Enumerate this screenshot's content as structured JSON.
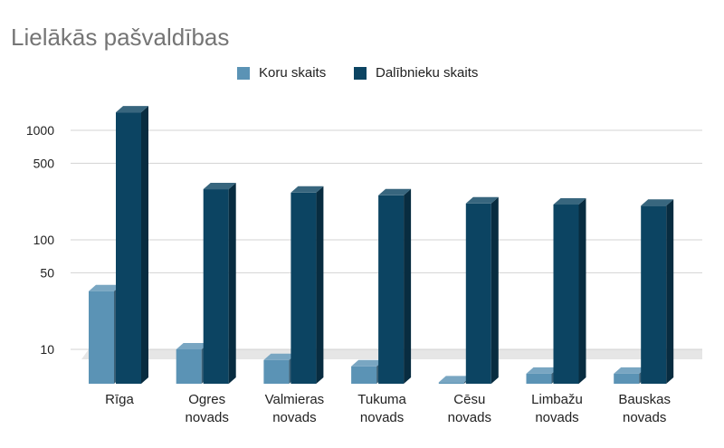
{
  "chart_data": {
    "type": "bar",
    "title": "Lielākās pašvaldības",
    "categories": [
      [
        "Rīga"
      ],
      [
        "Ogres",
        "novads"
      ],
      [
        "Valmieras",
        "novads"
      ],
      [
        "Tukuma",
        "novads"
      ],
      [
        "Cēsu",
        "novads"
      ],
      [
        "Limbažu",
        "novads"
      ],
      [
        "Bauskas",
        "novads"
      ]
    ],
    "series": [
      {
        "name": "Koru skaits",
        "color": "#5b93b5",
        "values": [
          34,
          10,
          8,
          7,
          5,
          6,
          6
        ]
      },
      {
        "name": "Dalībnieku skaits",
        "color": "#0c4462",
        "values": [
          1460,
          290,
          270,
          255,
          215,
          210,
          205
        ]
      }
    ],
    "y_scale": "log",
    "ylim": [
      5,
      2000
    ],
    "y_ticks": [
      10,
      50,
      100,
      500,
      1000
    ],
    "y_tick_labels": [
      "10",
      "50",
      "100",
      "500",
      "1000"
    ],
    "xlabel": "",
    "ylabel": "",
    "grid": true,
    "legend_position": "top-center",
    "bar_style": "3d"
  }
}
